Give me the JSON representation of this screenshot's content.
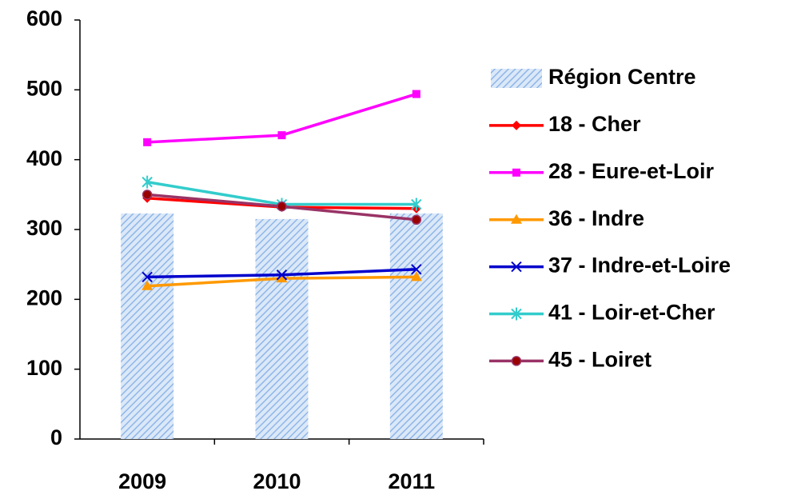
{
  "chart_data": {
    "type": "combo",
    "categories": [
      "2009",
      "2010",
      "2011"
    ],
    "ylim": [
      0,
      600
    ],
    "yticks": [
      0,
      100,
      200,
      300,
      400,
      500,
      600
    ],
    "legend": "right",
    "series": [
      {
        "name": "Région Centre",
        "type": "bar",
        "color": "#a9c8ef",
        "pattern": "hatch",
        "values": [
          323,
          315,
          323
        ]
      },
      {
        "name": "18 - Cher",
        "type": "line",
        "color": "#ff0000",
        "marker": "diamond",
        "values": [
          345,
          332,
          330
        ]
      },
      {
        "name": "28 - Eure-et-Loir",
        "type": "line",
        "color": "#ff00ff",
        "marker": "square",
        "values": [
          425,
          435,
          494
        ]
      },
      {
        "name": "36 - Indre",
        "type": "line",
        "color": "#ff9900",
        "marker": "triangle",
        "values": [
          219,
          230,
          232
        ]
      },
      {
        "name": "37 - Indre-et-Loire",
        "type": "line",
        "color": "#0000cc",
        "marker": "x",
        "values": [
          232,
          235,
          243
        ]
      },
      {
        "name": "41 - Loir-et-Cher",
        "type": "line",
        "color": "#33cccc",
        "marker": "star",
        "values": [
          368,
          336,
          336
        ]
      },
      {
        "name": "45 - Loiret",
        "type": "line",
        "color": "#993366",
        "marker": "circle",
        "values": [
          350,
          333,
          314
        ]
      }
    ]
  }
}
